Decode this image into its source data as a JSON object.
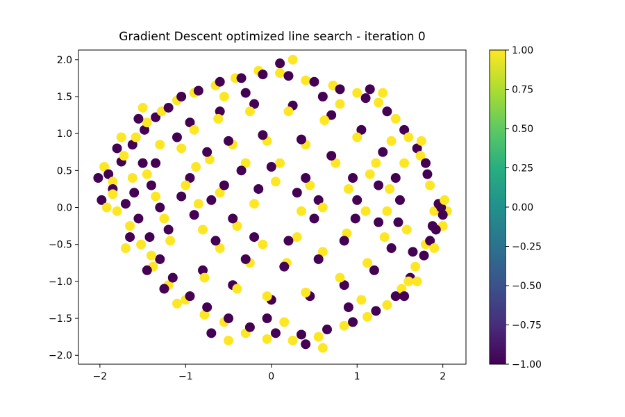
{
  "chart_data": {
    "type": "scatter",
    "title": "Gradient Descent optimized line search - iteration 0",
    "xlabel": "",
    "ylabel": "",
    "xlim": [
      -2.25,
      2.27
    ],
    "ylim": [
      -2.12,
      2.13
    ],
    "x_ticks": [
      -2,
      -1,
      0,
      1,
      2
    ],
    "x_tick_labels": [
      "−2",
      "−1",
      "0",
      "1",
      "2"
    ],
    "y_ticks": [
      -2.0,
      -1.5,
      -1.0,
      -0.5,
      0.0,
      0.5,
      1.0,
      1.5,
      2.0
    ],
    "y_tick_labels": [
      "−2.0",
      "−1.5",
      "−1.0",
      "−0.5",
      "0.0",
      "0.5",
      "1.0",
      "1.5",
      "2.0"
    ],
    "grid": false,
    "colormap": "viridis",
    "colorbar": {
      "range": [
        -1.0,
        1.0
      ],
      "ticks": [
        1.0,
        0.75,
        0.5,
        0.25,
        0.0,
        -0.25,
        -0.5,
        -0.75,
        -1.0
      ],
      "tick_labels": [
        "1.00",
        "0.75",
        "0.50",
        "0.25",
        "0.00",
        "−0.25",
        "−0.50",
        "−0.75",
        "−1.00"
      ]
    },
    "classes": [
      {
        "value": -1,
        "color": "#440154"
      },
      {
        "value": 1,
        "color": "#fde725"
      }
    ],
    "points_description": "Two interleaved spiral arms filling a disc of radius ~2; classes labeled -1 (purple) and 1 (yellow)",
    "series": [
      {
        "value": -1,
        "points": [
          [
            -2.02,
            0.4
          ],
          [
            -1.98,
            0.1
          ],
          [
            -1.9,
            0.45
          ],
          [
            -1.85,
            0.25
          ],
          [
            -1.75,
            0.62
          ],
          [
            -1.7,
            0.05
          ],
          [
            -1.62,
            0.85
          ],
          [
            -1.55,
            -0.15
          ],
          [
            -1.48,
            1.05
          ],
          [
            -1.42,
            -0.4
          ],
          [
            -1.35,
            1.22
          ],
          [
            -1.3,
            -0.7
          ],
          [
            -1.2,
            1.35
          ],
          [
            -1.15,
            -0.95
          ],
          [
            -1.05,
            1.5
          ],
          [
            -0.95,
            -1.2
          ],
          [
            -0.85,
            1.58
          ],
          [
            -0.75,
            -1.35
          ],
          [
            -0.6,
            1.7
          ],
          [
            -0.5,
            -1.5
          ],
          [
            -0.35,
            1.75
          ],
          [
            -0.25,
            -1.62
          ],
          [
            -0.1,
            1.8
          ],
          [
            0.05,
            -1.7
          ],
          [
            0.2,
            1.78
          ],
          [
            0.35,
            -1.72
          ],
          [
            0.5,
            1.7
          ],
          [
            0.65,
            -1.65
          ],
          [
            0.8,
            1.6
          ],
          [
            0.95,
            -1.55
          ],
          [
            1.1,
            1.48
          ],
          [
            1.22,
            -1.4
          ],
          [
            1.35,
            1.3
          ],
          [
            1.45,
            -1.2
          ],
          [
            1.55,
            1.05
          ],
          [
            1.62,
            -0.95
          ],
          [
            1.7,
            0.8
          ],
          [
            1.78,
            -0.65
          ],
          [
            1.82,
            0.45
          ],
          [
            1.88,
            -0.25
          ],
          [
            1.95,
            0.05
          ],
          [
            2.0,
            -0.1
          ],
          [
            1.98,
            0.0
          ],
          [
            1.92,
            -0.3
          ],
          [
            1.85,
            -0.45
          ],
          [
            -1.5,
            0.6
          ],
          [
            -1.4,
            0.3
          ],
          [
            -1.3,
            0.0
          ],
          [
            -1.2,
            -0.3
          ],
          [
            -1.1,
            0.95
          ],
          [
            -0.95,
            1.15
          ],
          [
            -0.8,
            -0.85
          ],
          [
            -0.6,
            1.3
          ],
          [
            -0.45,
            -1.05
          ],
          [
            -0.2,
            1.4
          ],
          [
            0.0,
            -1.25
          ],
          [
            0.25,
            1.38
          ],
          [
            0.45,
            -1.2
          ],
          [
            0.7,
            1.25
          ],
          [
            0.85,
            -1.05
          ],
          [
            1.05,
            1.05
          ],
          [
            1.2,
            -0.85
          ],
          [
            1.3,
            0.75
          ],
          [
            1.4,
            -0.55
          ],
          [
            1.45,
            0.4
          ],
          [
            1.5,
            0.1
          ],
          [
            1.48,
            -0.2
          ],
          [
            -0.95,
            0.4
          ],
          [
            -0.9,
            -0.1
          ],
          [
            -0.75,
            0.75
          ],
          [
            -0.65,
            -0.45
          ],
          [
            -0.5,
            0.9
          ],
          [
            -0.3,
            -0.7
          ],
          [
            -0.1,
            0.98
          ],
          [
            0.15,
            -0.8
          ],
          [
            0.35,
            0.92
          ],
          [
            0.55,
            -0.7
          ],
          [
            0.7,
            0.7
          ],
          [
            0.85,
            -0.45
          ],
          [
            0.95,
            0.4
          ],
          [
            1.0,
            0.1
          ],
          [
            0.98,
            -0.15
          ],
          [
            -0.55,
            0.3
          ],
          [
            -0.45,
            -0.15
          ],
          [
            -0.35,
            0.5
          ],
          [
            -0.2,
            -0.4
          ],
          [
            0.0,
            0.55
          ],
          [
            0.2,
            -0.45
          ],
          [
            0.4,
            0.4
          ],
          [
            0.5,
            -0.15
          ],
          [
            0.55,
            0.1
          ],
          [
            -1.65,
            -0.4
          ],
          [
            -1.55,
            1.2
          ],
          [
            -1.25,
            -1.1
          ],
          [
            -0.7,
            -1.7
          ],
          [
            0.1,
            1.95
          ],
          [
            0.4,
            -1.85
          ],
          [
            1.15,
            1.6
          ],
          [
            1.55,
            -1.2
          ],
          [
            1.8,
            0.6
          ],
          [
            -1.8,
            0.8
          ],
          [
            -1.6,
            0.2
          ],
          [
            -1.45,
            -0.85
          ],
          [
            -0.3,
            1.55
          ],
          [
            0.6,
            1.5
          ],
          [
            -0.05,
            -1.5
          ],
          [
            0.9,
            -1.35
          ],
          [
            1.65,
            -0.6
          ],
          [
            -1.05,
            0.15
          ],
          [
            -0.7,
            0.1
          ],
          [
            0.3,
            0.2
          ],
          [
            -0.15,
            0.25
          ],
          [
            1.25,
            0.3
          ],
          [
            1.25,
            -0.2
          ],
          [
            -1.35,
            0.6
          ]
        ]
      },
      {
        "value": 1,
        "points": [
          [
            -1.95,
            0.55
          ],
          [
            -1.92,
            0.0
          ],
          [
            -1.85,
            0.35
          ],
          [
            -1.8,
            -0.05
          ],
          [
            -1.72,
            0.7
          ],
          [
            -1.65,
            -0.25
          ],
          [
            -1.58,
            0.95
          ],
          [
            -1.52,
            -0.5
          ],
          [
            -1.45,
            1.15
          ],
          [
            -1.38,
            -0.8
          ],
          [
            -1.28,
            1.3
          ],
          [
            -1.2,
            -1.05
          ],
          [
            -1.1,
            1.45
          ],
          [
            -1.0,
            -1.25
          ],
          [
            -0.9,
            1.55
          ],
          [
            -0.78,
            -1.45
          ],
          [
            -0.65,
            1.65
          ],
          [
            -0.55,
            -1.55
          ],
          [
            -0.42,
            1.75
          ],
          [
            -0.3,
            -1.7
          ],
          [
            -0.15,
            1.85
          ],
          [
            -0.05,
            -1.78
          ],
          [
            0.1,
            1.82
          ],
          [
            0.25,
            -1.8
          ],
          [
            0.4,
            1.72
          ],
          [
            0.55,
            -1.75
          ],
          [
            0.72,
            1.65
          ],
          [
            0.85,
            -1.6
          ],
          [
            1.0,
            1.55
          ],
          [
            1.12,
            -1.48
          ],
          [
            1.25,
            1.42
          ],
          [
            1.35,
            -1.32
          ],
          [
            1.45,
            1.2
          ],
          [
            1.52,
            -1.1
          ],
          [
            1.6,
            0.95
          ],
          [
            1.68,
            -0.8
          ],
          [
            1.74,
            0.7
          ],
          [
            1.8,
            -0.5
          ],
          [
            1.85,
            0.3
          ],
          [
            1.9,
            -0.05
          ],
          [
            2.05,
            -0.05
          ],
          [
            2.0,
            -0.25
          ],
          [
            1.7,
            -1.0
          ],
          [
            1.55,
            0.6
          ],
          [
            1.4,
            0.9
          ],
          [
            -1.45,
            0.45
          ],
          [
            -1.35,
            0.15
          ],
          [
            -1.25,
            -0.15
          ],
          [
            -1.18,
            -0.45
          ],
          [
            -1.05,
            0.8
          ],
          [
            -0.9,
            1.05
          ],
          [
            -0.78,
            -0.95
          ],
          [
            -0.62,
            1.2
          ],
          [
            -0.4,
            -1.1
          ],
          [
            -0.25,
            1.3
          ],
          [
            -0.05,
            -1.2
          ],
          [
            0.2,
            1.3
          ],
          [
            0.4,
            -1.15
          ],
          [
            0.62,
            1.18
          ],
          [
            0.8,
            -0.95
          ],
          [
            1.0,
            0.95
          ],
          [
            1.12,
            -0.75
          ],
          [
            1.22,
            0.6
          ],
          [
            1.32,
            -0.4
          ],
          [
            1.38,
            0.25
          ],
          [
            1.35,
            -0.05
          ],
          [
            -0.88,
            0.55
          ],
          [
            -0.85,
            0.05
          ],
          [
            -0.72,
            0.65
          ],
          [
            -0.6,
            -0.55
          ],
          [
            -0.45,
            0.85
          ],
          [
            -0.25,
            -0.75
          ],
          [
            -0.05,
            0.9
          ],
          [
            0.18,
            -0.75
          ],
          [
            0.4,
            0.85
          ],
          [
            0.6,
            -0.6
          ],
          [
            0.75,
            0.6
          ],
          [
            0.88,
            -0.35
          ],
          [
            0.9,
            0.25
          ],
          [
            -0.6,
            0.2
          ],
          [
            -0.4,
            -0.25
          ],
          [
            -0.3,
            0.6
          ],
          [
            -0.1,
            -0.5
          ],
          [
            0.1,
            0.6
          ],
          [
            0.3,
            -0.4
          ],
          [
            0.45,
            0.3
          ],
          [
            0.35,
            -0.05
          ],
          [
            -1.7,
            -0.55
          ],
          [
            -1.5,
            1.35
          ],
          [
            -1.1,
            -1.3
          ],
          [
            -0.5,
            -1.8
          ],
          [
            0.25,
            2.0
          ],
          [
            0.6,
            -1.9
          ],
          [
            1.3,
            1.55
          ],
          [
            1.6,
            -1.0
          ],
          [
            1.75,
            0.9
          ],
          [
            -1.75,
            0.95
          ],
          [
            -1.62,
            0.4
          ],
          [
            -1.4,
            -0.65
          ],
          [
            -0.55,
            1.5
          ],
          [
            0.8,
            1.4
          ],
          [
            0.15,
            -1.55
          ],
          [
            1.05,
            -1.25
          ],
          [
            1.58,
            -0.3
          ],
          [
            -1.0,
            0.3
          ],
          [
            -0.8,
            -0.3
          ],
          [
            0.6,
            0.0
          ],
          [
            1.15,
            0.45
          ],
          [
            1.1,
            -0.05
          ],
          [
            -1.3,
            0.85
          ],
          [
            -0.2,
            0.05
          ],
          [
            0.05,
            0.35
          ],
          [
            -1.85,
            0.18
          ],
          [
            2.02,
            0.1
          ],
          [
            1.9,
            -0.55
          ]
        ]
      }
    ]
  }
}
